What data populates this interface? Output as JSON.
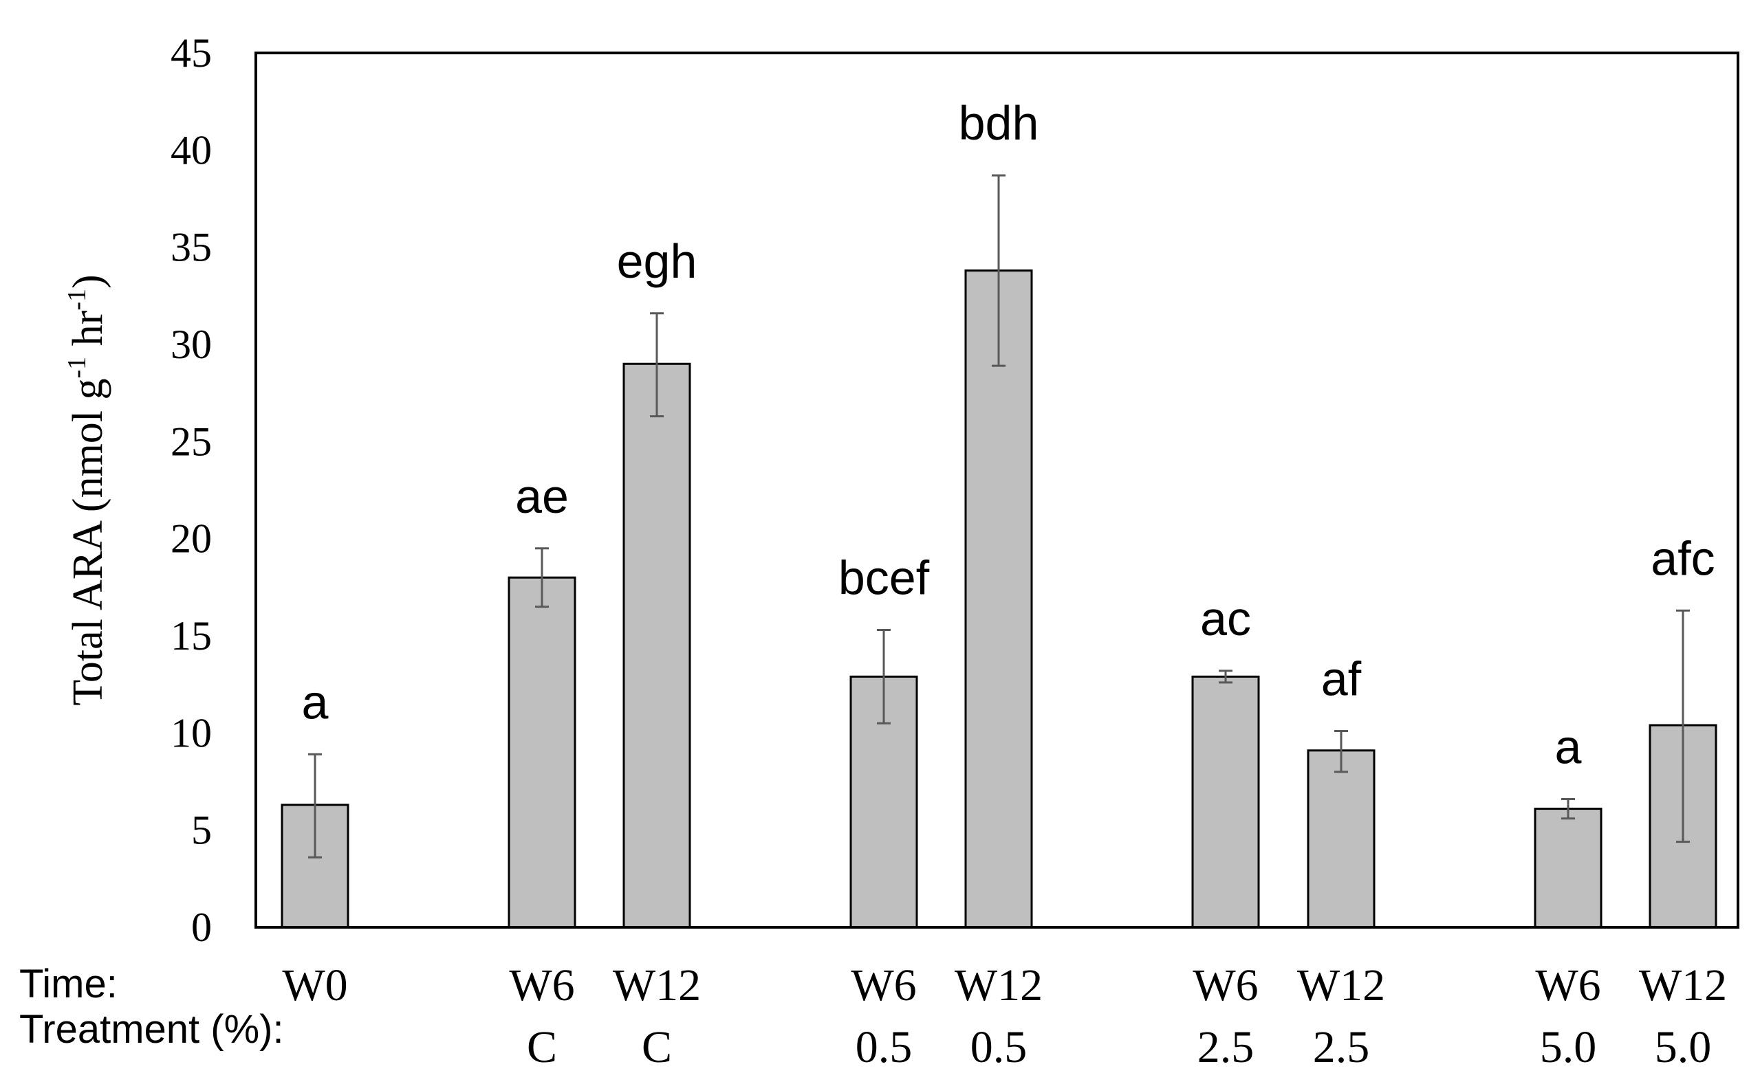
{
  "chart_data": {
    "type": "bar",
    "title": "",
    "ylabel_main": "Total ARA (nmol g",
    "ylabel_sup1": "-1",
    "ylabel_mid": " hr",
    "ylabel_sup2": "-1",
    "ylabel_end": ")",
    "ylim": [
      0,
      45
    ],
    "yticks": [
      0,
      5,
      10,
      15,
      20,
      25,
      30,
      35,
      40,
      45
    ],
    "row_labels": {
      "time": "Time:",
      "treatment": "Treatment (%):"
    },
    "bar_color": "#bfbfbf",
    "error_color": "#595959",
    "bars": [
      {
        "time": "W0",
        "treatment": "",
        "value": 6.3,
        "err_low": 3.6,
        "err_high": 8.9,
        "label": "a"
      },
      {
        "time": "W6",
        "treatment": "C",
        "value": 18.0,
        "err_low": 16.5,
        "err_high": 19.5,
        "label": "ae"
      },
      {
        "time": "W12",
        "treatment": "C",
        "value": 29.0,
        "err_low": 26.3,
        "err_high": 31.6,
        "label": "egh"
      },
      {
        "time": "W6",
        "treatment": "0.5",
        "value": 12.9,
        "err_low": 10.5,
        "err_high": 15.3,
        "label": "bcef"
      },
      {
        "time": "W12",
        "treatment": "0.5",
        "value": 33.8,
        "err_low": 28.9,
        "err_high": 38.7,
        "label": "bdh"
      },
      {
        "time": "W6",
        "treatment": "2.5",
        "value": 12.9,
        "err_low": 12.6,
        "err_high": 13.2,
        "label": "ac"
      },
      {
        "time": "W12",
        "treatment": "2.5",
        "value": 9.1,
        "err_low": 8.0,
        "err_high": 10.1,
        "label": "af"
      },
      {
        "time": "W6",
        "treatment": "5.0",
        "value": 6.1,
        "err_low": 5.6,
        "err_high": 6.6,
        "label": "a"
      },
      {
        "time": "W12",
        "treatment": "5.0",
        "value": 10.4,
        "err_low": 4.4,
        "err_high": 16.3,
        "label": "afc"
      }
    ]
  }
}
